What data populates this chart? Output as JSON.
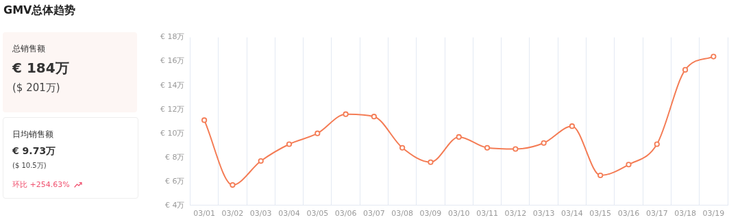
{
  "chart_data": [
    {
      "type": "line",
      "categories": [
        "03/01",
        "03/02",
        "03/03",
        "03/04",
        "03/05",
        "03/06",
        "03/07",
        "03/08",
        "03/09",
        "03/10",
        "03/11",
        "03/12",
        "03/13",
        "03/14",
        "03/15",
        "03/16",
        "03/17",
        "03/18",
        "03/19"
      ],
      "series": [
        {
          "color": "#f47c55",
          "values": [
            11.1,
            5.7,
            7.7,
            9.1,
            10.0,
            11.6,
            11.4,
            8.8,
            7.6,
            9.7,
            8.8,
            8.7,
            9.2,
            10.6,
            6.5,
            7.4,
            9.1,
            15.3,
            16.4
          ]
        }
      ],
      "ylim": [
        4,
        18
      ],
      "yticks": [
        {
          "value": 4,
          "label": "€ 4万"
        },
        {
          "value": 6,
          "label": "€ 6万"
        },
        {
          "value": 8,
          "label": "€ 8万"
        },
        {
          "value": 10,
          "label": "€ 10万"
        },
        {
          "value": 12,
          "label": "€ 12万"
        },
        {
          "value": 14,
          "label": "€ 14万"
        },
        {
          "value": 16,
          "label": "€ 16万"
        },
        {
          "value": 18,
          "label": "€ 18万"
        }
      ],
      "grid": "x",
      "legend": false,
      "marker": "circle",
      "line_style": "solid"
    },
    {
      "type": "other",
      "title": "GMV总体趋势",
      "annotations": [
        "总销售额",
        "€ 184万",
        "($ 201万)",
        "日均销售额",
        "€ 9.73万",
        "($ 10.5万)",
        "环比 +254.63%"
      ]
    }
  ]
}
